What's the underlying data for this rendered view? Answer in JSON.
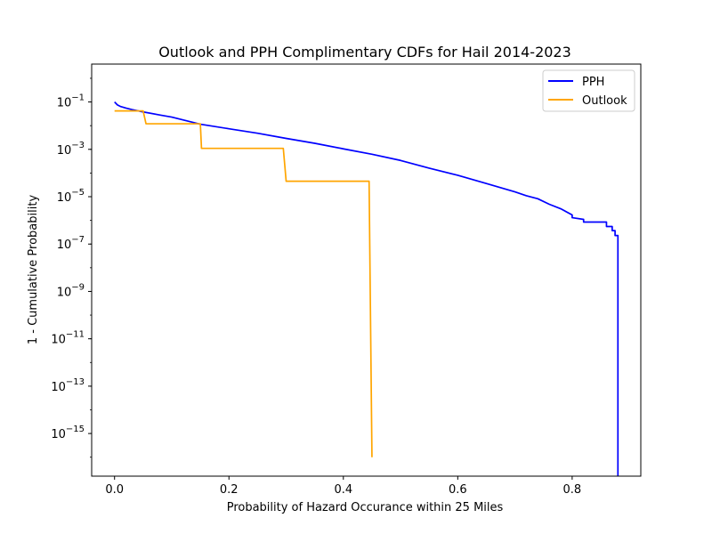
{
  "chart_data": {
    "type": "line",
    "title": "Outlook and PPH Complimentary CDFs for Hail 2014-2023",
    "xlabel": "Probability of Hazard Occurance within 25 Miles",
    "ylabel": "1 - Cumulative Probability",
    "xscale": "linear",
    "yscale": "log",
    "xlim": [
      -0.04,
      0.92
    ],
    "ylim_log10": [
      -16.8,
      0.6
    ],
    "xticks": [
      {
        "value": 0.0,
        "label": "0.0"
      },
      {
        "value": 0.2,
        "label": "0.2"
      },
      {
        "value": 0.4,
        "label": "0.4"
      },
      {
        "value": 0.6,
        "label": "0.6"
      },
      {
        "value": 0.8,
        "label": "0.8"
      }
    ],
    "yticks": [
      {
        "exp": -1,
        "base": "10",
        "sup": "−1"
      },
      {
        "exp": -3,
        "base": "10",
        "sup": "−3"
      },
      {
        "exp": -5,
        "base": "10",
        "sup": "−5"
      },
      {
        "exp": -7,
        "base": "10",
        "sup": "−7"
      },
      {
        "exp": -9,
        "base": "10",
        "sup": "−9"
      },
      {
        "exp": -11,
        "base": "10",
        "sup": "−11"
      },
      {
        "exp": -13,
        "base": "10",
        "sup": "−13"
      },
      {
        "exp": -15,
        "base": "10",
        "sup": "−15"
      }
    ],
    "legend_position": "top-right",
    "series": [
      {
        "name": "PPH",
        "color": "#0000ff",
        "points": [
          [
            0.0,
            0.1
          ],
          [
            0.005,
            0.075
          ],
          [
            0.01,
            0.065
          ],
          [
            0.02,
            0.055
          ],
          [
            0.03,
            0.048
          ],
          [
            0.05,
            0.038
          ],
          [
            0.08,
            0.028
          ],
          [
            0.1,
            0.023
          ],
          [
            0.15,
            0.0115
          ],
          [
            0.2,
            0.0074
          ],
          [
            0.25,
            0.0048
          ],
          [
            0.3,
            0.0029
          ],
          [
            0.35,
            0.0018
          ],
          [
            0.4,
            0.00105
          ],
          [
            0.45,
            0.00062
          ],
          [
            0.5,
            0.00034
          ],
          [
            0.55,
            0.00016
          ],
          [
            0.6,
            8e-05
          ],
          [
            0.65,
            3.6e-05
          ],
          [
            0.7,
            1.6e-05
          ],
          [
            0.72,
            1.1e-05
          ],
          [
            0.74,
            8.2e-06
          ],
          [
            0.76,
            4.8e-06
          ],
          [
            0.78,
            3.1e-06
          ],
          [
            0.8,
            1.7e-06
          ],
          [
            0.8,
            1.3e-06
          ],
          [
            0.82,
            1.1e-06
          ],
          [
            0.82,
            8.5e-07
          ],
          [
            0.86,
            8.5e-07
          ],
          [
            0.86,
            5.5e-07
          ],
          [
            0.87,
            5.5e-07
          ],
          [
            0.87,
            3.7e-07
          ],
          [
            0.875,
            3.7e-07
          ],
          [
            0.875,
            2.3e-07
          ],
          [
            0.88,
            2.3e-07
          ],
          [
            0.88,
            1e-18
          ]
        ]
      },
      {
        "name": "Outlook",
        "color": "#ffa500",
        "points": [
          [
            0.0,
            0.042
          ],
          [
            0.05,
            0.042
          ],
          [
            0.055,
            0.012
          ],
          [
            0.15,
            0.012
          ],
          [
            0.152,
            0.0011
          ],
          [
            0.295,
            0.0011
          ],
          [
            0.3,
            4.5e-05
          ],
          [
            0.445,
            4.5e-05
          ],
          [
            0.45,
            1e-16
          ]
        ]
      }
    ]
  }
}
